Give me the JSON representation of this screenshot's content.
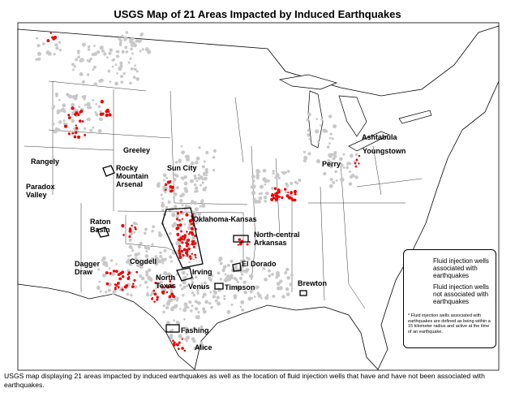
{
  "title": "USGS Map of 21 Areas Impacted by Induced Earthquakes",
  "areas": [
    "Rangely",
    "Greeley",
    "Rocky Mountain Arsenal",
    "Sun City",
    "Paradox Valley",
    "Raton Basin",
    "Oklahoma-Kansas",
    "North-central Arkansas",
    "Dagger Draw",
    "Cogdell",
    "Irving",
    "North Texas",
    "Venus",
    "El Dorado",
    "Timpson",
    "Brewton",
    "Fashing",
    "Alice",
    "Ashtabula",
    "Youngstown",
    "Perry"
  ],
  "legend": {
    "items": [
      "Fluid injection wells associated with earthquakes",
      "Fluid injection wells not associated with earthquakes"
    ],
    "footnote": "* Fluid injection wells associated with earthquakes are defined as being within a 15 kilometer radius and active at the time of an earthquake."
  },
  "caption": "USGS map displaying 21 areas impacted by induced earthquakes as well as the location of fluid injection wells that have and have not been associated with earthquakes."
}
